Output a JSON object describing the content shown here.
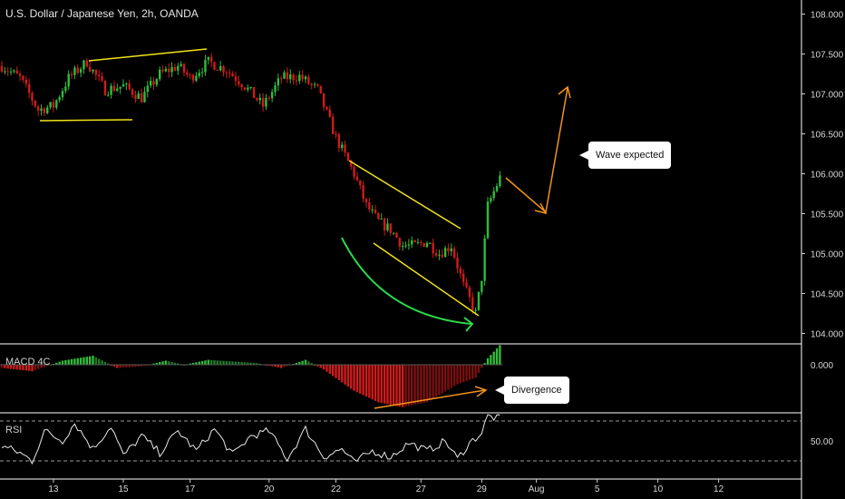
{
  "header": {
    "title": "U.S. Dollar / Japanese Yen, 2h, OANDA"
  },
  "panes": {
    "macd_label": "MACD 4C",
    "rsi_label": "RSI"
  },
  "annotations": {
    "wave": "Wave expected",
    "divergence": "Divergence"
  },
  "colors": {
    "up": "#2ebd3a",
    "down": "#d11a1a",
    "trendline": "#f2e31a",
    "arc": "#2bd94a",
    "projection": "#f3931b",
    "divider": "#ffffff"
  },
  "chart_data": [
    {
      "type": "line",
      "name": "price",
      "y_ticks": [
        "108.000",
        "107.500",
        "107.000",
        "106.500",
        "106.000",
        "105.500",
        "105.000",
        "104.500",
        "104.000"
      ],
      "ylim": [
        103.9,
        108.1
      ],
      "x_ticks": [
        "13",
        "15",
        "17",
        "20",
        "22",
        "27",
        "29",
        "Aug",
        "5",
        "10",
        "12"
      ],
      "x_tick_idx": [
        17,
        40,
        62,
        88,
        110,
        138,
        158,
        176,
        196,
        216,
        236
      ],
      "knots": [
        [
          0,
          107.35
        ],
        [
          6,
          107.2
        ],
        [
          12,
          106.8
        ],
        [
          17,
          106.85
        ],
        [
          22,
          107.2
        ],
        [
          28,
          107.4
        ],
        [
          34,
          107.05
        ],
        [
          40,
          107.1
        ],
        [
          46,
          106.95
        ],
        [
          52,
          107.25
        ],
        [
          58,
          107.35
        ],
        [
          62,
          107.2
        ],
        [
          68,
          107.4
        ],
        [
          74,
          107.3
        ],
        [
          80,
          107.1
        ],
        [
          86,
          106.85
        ],
        [
          92,
          107.2
        ],
        [
          98,
          107.22
        ],
        [
          104,
          107.05
        ],
        [
          110,
          106.45
        ],
        [
          116,
          106.0
        ],
        [
          120,
          105.6
        ],
        [
          124,
          105.4
        ],
        [
          128,
          105.3
        ],
        [
          132,
          105.1
        ],
        [
          136,
          105.1
        ],
        [
          140,
          105.15
        ],
        [
          144,
          105.0
        ],
        [
          148,
          105.1
        ],
        [
          152,
          104.6
        ],
        [
          156,
          104.25
        ],
        [
          158,
          104.7
        ],
        [
          160,
          105.6
        ],
        [
          164,
          105.95
        ]
      ]
    },
    {
      "type": "bar",
      "name": "MACD 4C",
      "y_ticks": [
        "0.000"
      ],
      "knots": [
        [
          0,
          -0.2
        ],
        [
          10,
          -0.4
        ],
        [
          20,
          0.25
        ],
        [
          30,
          0.55
        ],
        [
          38,
          -0.2
        ],
        [
          46,
          -0.1
        ],
        [
          54,
          0.25
        ],
        [
          60,
          0.0
        ],
        [
          68,
          0.3
        ],
        [
          76,
          0.2
        ],
        [
          84,
          0.1
        ],
        [
          92,
          -0.2
        ],
        [
          100,
          0.3
        ],
        [
          106,
          -0.3
        ],
        [
          116,
          -1.6
        ],
        [
          124,
          -2.3
        ],
        [
          132,
          -2.6
        ],
        [
          140,
          -2.3
        ],
        [
          150,
          -1.2
        ],
        [
          156,
          -0.8
        ],
        [
          160,
          0.4
        ],
        [
          164,
          1.2
        ]
      ]
    },
    {
      "type": "line",
      "name": "RSI",
      "y_ticks": [
        "50.00"
      ],
      "ylim": [
        20,
        80
      ],
      "levels": [
        30,
        70
      ],
      "knots": [
        [
          0,
          45
        ],
        [
          6,
          38
        ],
        [
          10,
          30
        ],
        [
          14,
          60
        ],
        [
          20,
          50
        ],
        [
          24,
          68
        ],
        [
          30,
          42
        ],
        [
          36,
          65
        ],
        [
          40,
          35
        ],
        [
          46,
          55
        ],
        [
          52,
          38
        ],
        [
          58,
          60
        ],
        [
          64,
          40
        ],
        [
          70,
          62
        ],
        [
          76,
          36
        ],
        [
          82,
          55
        ],
        [
          88,
          60
        ],
        [
          94,
          32
        ],
        [
          100,
          62
        ],
        [
          106,
          34
        ],
        [
          112,
          42
        ],
        [
          116,
          28
        ],
        [
          122,
          40
        ],
        [
          128,
          34
        ],
        [
          134,
          48
        ],
        [
          140,
          40
        ],
        [
          146,
          50
        ],
        [
          150,
          32
        ],
        [
          154,
          48
        ],
        [
          158,
          58
        ],
        [
          160,
          75
        ],
        [
          164,
          72
        ]
      ]
    }
  ]
}
